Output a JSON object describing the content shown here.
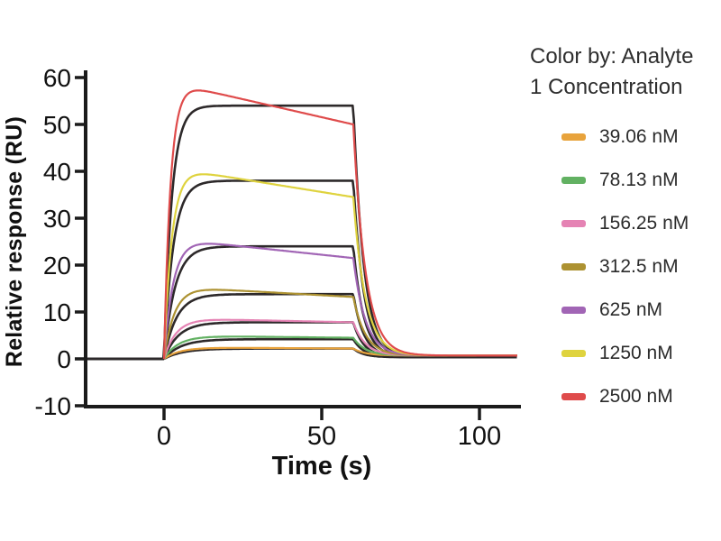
{
  "page": {
    "background": "#ffffff"
  },
  "figure": {
    "y_axis_title": "Relative response (RU)",
    "x_axis_title": "Time (s)",
    "legend": {
      "title_line1": "Color by: Analyte",
      "title_line2": "1 Concentration"
    }
  },
  "chart_data": {
    "type": "line",
    "subtype": "SPR sensorgram with kinetic fit overlays",
    "title": "",
    "xlabel": "Time (s)",
    "ylabel": "Relative response (RU)",
    "xlim": [
      -25,
      113
    ],
    "ylim": [
      -10,
      60
    ],
    "x_ticks": [
      0,
      50,
      100
    ],
    "y_ticks": [
      -10,
      0,
      10,
      20,
      30,
      40,
      50,
      60
    ],
    "grid": false,
    "legend_position": "right",
    "legend_title": "Color by: Analyte 1 Concentration",
    "axis_color": "#1b1b1b",
    "fit_color": "#2d292a",
    "kinetics": {
      "baseline_RU": 0,
      "association_start_s": 0,
      "association_end_s": 60,
      "data_tail_RU": 0.7,
      "fit_tail_RU": 0.35,
      "data_dissoc_rate": 0.26,
      "fit_dissoc_rate": 0.3
    },
    "series": [
      {
        "name": "39.06 nM",
        "color": "#E8A33C",
        "peak_RU": 2.4,
        "end_RU": 2.2,
        "fit_Rmax_RU": 2.2,
        "rise_rate": 0.2
      },
      {
        "name": "78.13 nM",
        "color": "#62B162",
        "peak_RU": 4.8,
        "end_RU": 4.5,
        "fit_Rmax_RU": 4.2,
        "rise_rate": 0.22
      },
      {
        "name": "156.25 nM",
        "color": "#E583B4",
        "peak_RU": 8.4,
        "end_RU": 7.8,
        "fit_Rmax_RU": 7.8,
        "rise_rate": 0.26
      },
      {
        "name": "312.5 nM",
        "color": "#AD9232",
        "peak_RU": 15.0,
        "end_RU": 13.2,
        "fit_Rmax_RU": 13.8,
        "rise_rate": 0.3
      },
      {
        "name": "625 nM",
        "color": "#A165B5",
        "peak_RU": 25.0,
        "end_RU": 21.5,
        "fit_Rmax_RU": 24.0,
        "rise_rate": 0.34
      },
      {
        "name": "1250 nM",
        "color": "#DFD33F",
        "peak_RU": 39.8,
        "end_RU": 34.5,
        "fit_Rmax_RU": 38.0,
        "rise_rate": 0.4
      },
      {
        "name": "2500 nM",
        "color": "#DF4B4B",
        "peak_RU": 57.5,
        "end_RU": 50.0,
        "fit_Rmax_RU": 54.0,
        "rise_rate": 0.48
      }
    ]
  }
}
